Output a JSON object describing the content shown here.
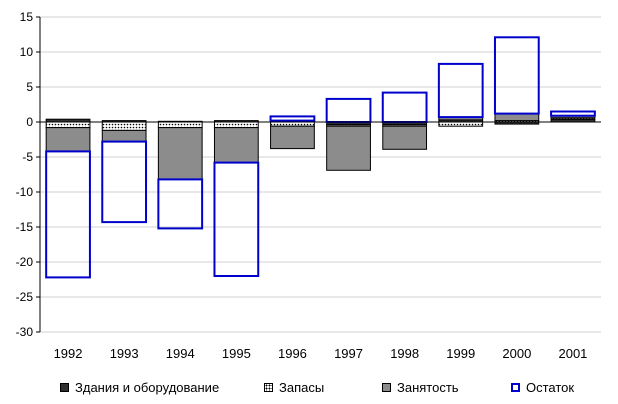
{
  "chart_data": {
    "type": "bar",
    "stacked": true,
    "categories": [
      "1992",
      "1993",
      "1994",
      "1995",
      "1996",
      "1997",
      "1998",
      "1999",
      "2000",
      "2001"
    ],
    "series": [
      {
        "name": "Здания и оборудование",
        "values": [
          0.4,
          0.2,
          0.1,
          0.2,
          0.2,
          -0.4,
          -0.4,
          0.3,
          -0.3,
          0.4
        ]
      },
      {
        "name": "Запасы",
        "values": [
          -0.8,
          -1.2,
          -0.8,
          -0.8,
          -0.6,
          -0.2,
          -0.2,
          -0.6,
          0.2,
          0.2
        ]
      },
      {
        "name": "Занятость",
        "values": [
          -3.4,
          -1.6,
          -7.4,
          -5.0,
          -3.2,
          -6.3,
          -3.3,
          0.4,
          1.0,
          0.3
        ]
      },
      {
        "name": "Остаток",
        "values": [
          -18.0,
          -11.5,
          -7.0,
          -16.2,
          0.6,
          3.3,
          4.2,
          7.6,
          10.9,
          0.6
        ]
      }
    ],
    "ylim": [
      -30,
      15
    ],
    "yticks": [
      -30,
      -25,
      -20,
      -15,
      -10,
      -5,
      0,
      5,
      10,
      15
    ],
    "grid": true,
    "legend": "bottom",
    "colors": {
      "buildings": "#303030",
      "stocks_bg": "#ffffff",
      "employment": "#8c8c8c",
      "residual_border": "#0000cc",
      "grid": "#d0d0d0"
    }
  },
  "legend": {
    "items": [
      "Здания и оборудование",
      "Запасы",
      "Занятость",
      "Остаток"
    ]
  }
}
